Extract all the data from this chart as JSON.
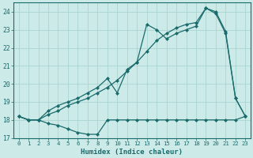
{
  "xlabel": "Humidex (Indice chaleur)",
  "background_color": "#cceae8",
  "grid_color": "#aad4d0",
  "line_color": "#1a6b6b",
  "xlim": [
    -0.5,
    23.5
  ],
  "ylim": [
    17.0,
    24.5
  ],
  "yticks": [
    17,
    18,
    19,
    20,
    21,
    22,
    23,
    24
  ],
  "xticks": [
    0,
    1,
    2,
    3,
    4,
    5,
    6,
    7,
    8,
    9,
    10,
    11,
    12,
    13,
    14,
    15,
    16,
    17,
    18,
    19,
    20,
    21,
    22,
    23
  ],
  "series1_x": [
    0,
    1,
    2,
    3,
    4,
    5,
    6,
    7,
    8,
    9,
    10,
    11,
    12,
    13,
    14,
    15,
    16,
    17,
    18,
    19,
    20,
    21,
    22,
    23
  ],
  "series1_y": [
    18.2,
    18.0,
    18.0,
    17.8,
    17.7,
    17.5,
    17.3,
    17.2,
    17.2,
    18.0,
    18.0,
    18.0,
    18.0,
    18.0,
    18.0,
    18.0,
    18.0,
    18.0,
    18.0,
    18.0,
    18.0,
    18.0,
    18.0,
    18.2
  ],
  "series2_x": [
    0,
    1,
    2,
    3,
    4,
    5,
    6,
    7,
    8,
    9,
    10,
    11,
    12,
    13,
    14,
    15,
    16,
    17,
    18,
    19,
    20,
    21,
    22,
    23
  ],
  "series2_y": [
    18.2,
    18.0,
    18.0,
    18.3,
    18.5,
    18.8,
    19.0,
    19.2,
    19.5,
    19.8,
    20.2,
    20.7,
    21.2,
    21.8,
    22.4,
    22.8,
    23.1,
    23.3,
    23.4,
    24.2,
    23.9,
    22.8,
    19.2,
    18.2
  ],
  "series3_x": [
    0,
    1,
    2,
    3,
    4,
    5,
    6,
    7,
    8,
    9,
    10,
    11,
    12,
    13,
    14,
    15,
    16,
    17,
    18,
    19,
    20,
    21,
    22,
    23
  ],
  "series3_y": [
    18.2,
    18.0,
    18.0,
    18.5,
    18.8,
    19.0,
    19.2,
    19.5,
    19.8,
    20.3,
    19.5,
    20.8,
    21.2,
    23.3,
    23.0,
    22.5,
    22.8,
    23.0,
    23.2,
    24.2,
    24.0,
    22.9,
    19.2,
    18.2
  ]
}
